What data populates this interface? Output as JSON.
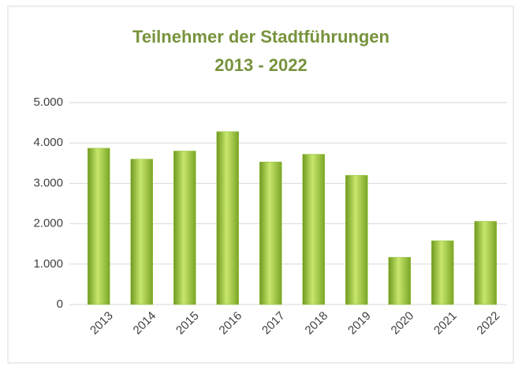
{
  "chart_data": {
    "type": "bar",
    "title": "Teilnehmer der Stadtführungen",
    "subtitle": "2013 - 2022",
    "categories": [
      "2013",
      "2014",
      "2015",
      "2016",
      "2017",
      "2018",
      "2019",
      "2020",
      "2021",
      "2022"
    ],
    "values": [
      3870,
      3600,
      3800,
      4280,
      3530,
      3720,
      3200,
      1170,
      1580,
      2060
    ],
    "color": "#92c13a",
    "ylim": [
      0,
      5000
    ],
    "yticks": [
      0,
      {
        "value": 1000,
        "label": "1.000"
      },
      {
        "value": 2000,
        "label": "2.000"
      },
      {
        "value": 3000,
        "label": "3.000"
      },
      {
        "value": 4000,
        "label": "4.000"
      },
      {
        "value": 5000,
        "label": "5.000"
      }
    ],
    "grid": true
  }
}
